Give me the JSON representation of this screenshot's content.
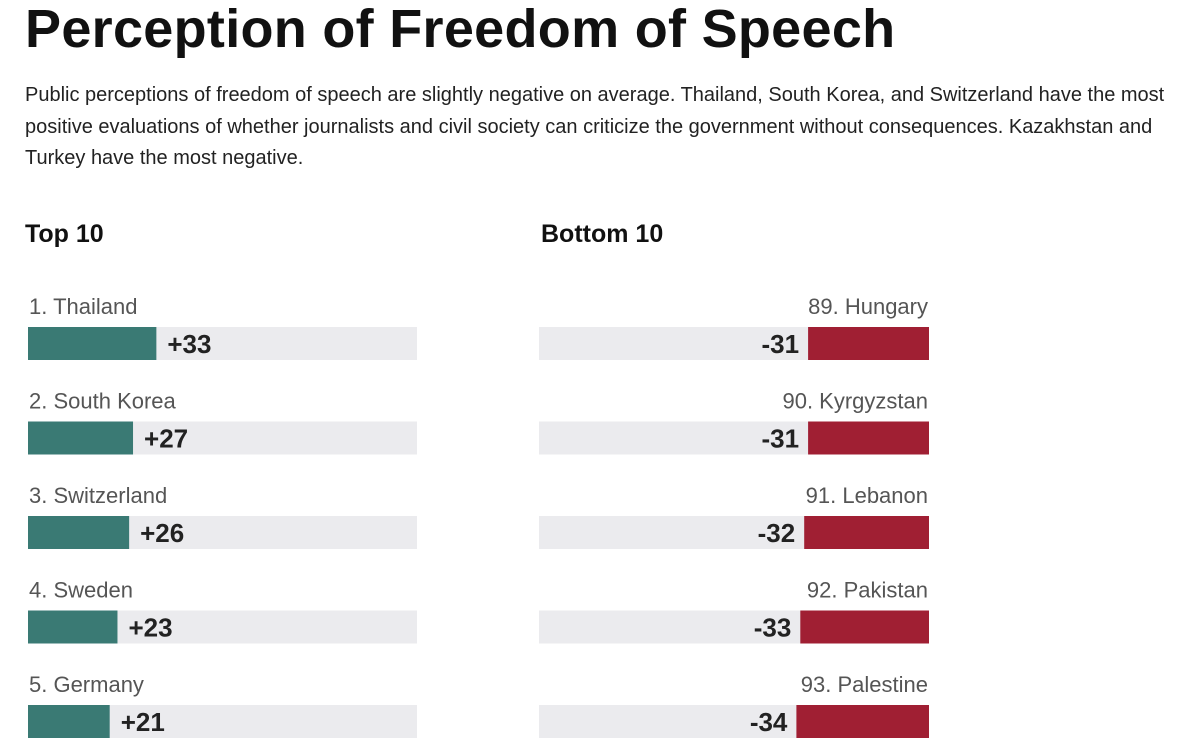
{
  "header": {
    "title": "Perception of Freedom of Speech",
    "subtitle": "Public perceptions of freedom of speech are slightly negative on average. Thailand, South Korea, and Switzerland have the most positive evaluations of whether journalists and civil society can criticize the government without consequences. Kazakhstan and Turkey have the most negative."
  },
  "chart_data": [
    {
      "type": "bar",
      "title": "Top 10",
      "orientation": "horizontal",
      "categories": [
        "1. Thailand",
        "2. South Korea",
        "3. Switzerland",
        "4. Sweden",
        "5. Germany"
      ],
      "values": [
        33,
        27,
        26,
        23,
        21
      ],
      "value_labels": [
        "+33",
        "+27",
        "+26",
        "+23",
        "+21"
      ],
      "xlim": [
        0,
        100
      ],
      "color": "#3a7a74",
      "track_color": "#ebebee"
    },
    {
      "type": "bar",
      "title": "Bottom 10",
      "orientation": "horizontal",
      "categories": [
        "89. Hungary",
        "90. Kyrgyzstan",
        "91. Lebanon",
        "92. Pakistan",
        "93. Palestine"
      ],
      "values": [
        -31,
        -31,
        -32,
        -33,
        -34
      ],
      "value_labels": [
        "-31",
        "-31",
        "-32",
        "-33",
        "-34"
      ],
      "xlim": [
        -100,
        0
      ],
      "color": "#a01f33",
      "track_color": "#ebebee"
    }
  ]
}
